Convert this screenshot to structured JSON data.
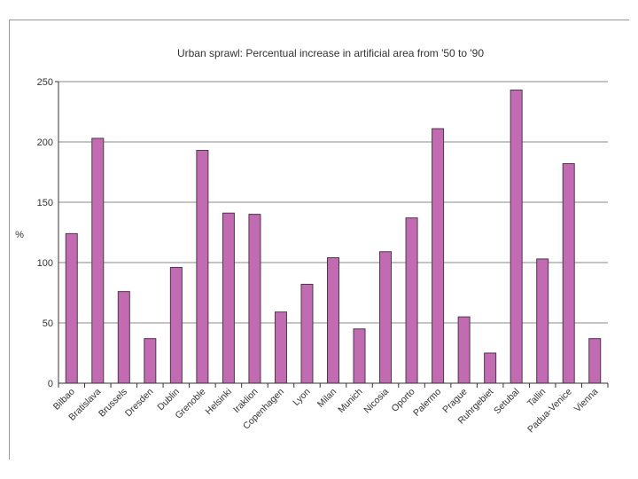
{
  "chart_data": {
    "type": "bar",
    "title": "Urban sprawl: Percentual increase in artificial area from '50 to '90",
    "xlabel": "",
    "ylabel": "%",
    "ylim": [
      0,
      250
    ],
    "yticks": [
      "0",
      "50",
      "100",
      "150",
      "200",
      "250"
    ],
    "grid": true,
    "bar_color": "#c26bb3",
    "bar_edge_color": "#4a3a48",
    "categories": [
      "Bilbao",
      "Bratislava",
      "Brussels",
      "Dresden",
      "Dublin",
      "Grenoble",
      "Helsinki",
      "Iraklion",
      "Copenhagen",
      "Lyon",
      "Milan",
      "Munich",
      "Nicosia",
      "Oporto",
      "Palermo",
      "Prague",
      "Ruhrgebiet",
      "Setubal",
      "Tallin",
      "Padua-Venice",
      "Vienna"
    ],
    "values": [
      124,
      203,
      76,
      37,
      96,
      193,
      141,
      140,
      59,
      82,
      104,
      45,
      109,
      137,
      211,
      55,
      25,
      243,
      103,
      182,
      37
    ]
  }
}
